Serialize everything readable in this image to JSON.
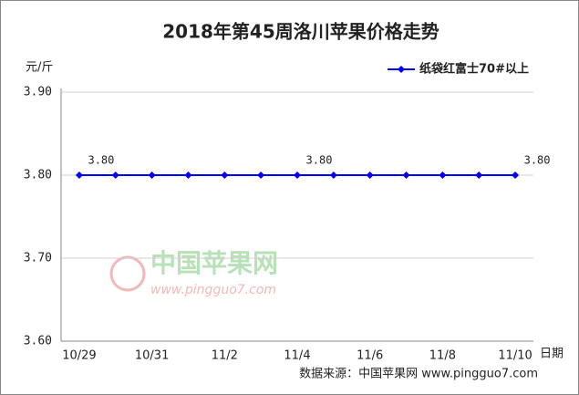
{
  "chart_data": {
    "type": "line",
    "title": "2018年第45周洛川苹果价格走势",
    "y_label": "元/斤",
    "x_label": "日期",
    "source": "数据来源：中国苹果网 www.pingguo7.com",
    "watermark": {
      "name": "中国苹果网",
      "url": "www.pingguo7.com"
    },
    "categories": [
      "10/29",
      null,
      "10/31",
      null,
      "11/2",
      null,
      "11/4",
      null,
      "11/6",
      null,
      "11/8",
      null,
      "11/10"
    ],
    "series": [
      {
        "name": "纸袋红富士70#以上",
        "color": "#0000ff",
        "values": [
          3.8,
          3.8,
          3.8,
          3.8,
          3.8,
          3.8,
          3.8,
          3.8,
          3.8,
          3.8,
          3.8,
          3.8,
          3.8
        ],
        "value_labels": [
          "3.80",
          null,
          null,
          null,
          null,
          null,
          "3.80",
          null,
          null,
          null,
          null,
          null,
          "3.80"
        ]
      }
    ],
    "ylim": [
      3.6,
      3.9
    ],
    "yticks": [
      {
        "value": 3.6,
        "label": "3.60"
      },
      {
        "value": 3.7,
        "label": "3.70"
      },
      {
        "value": 3.8,
        "label": "3.80"
      },
      {
        "value": 3.9,
        "label": "3.90"
      }
    ],
    "grid": true,
    "legend": "top-right"
  }
}
